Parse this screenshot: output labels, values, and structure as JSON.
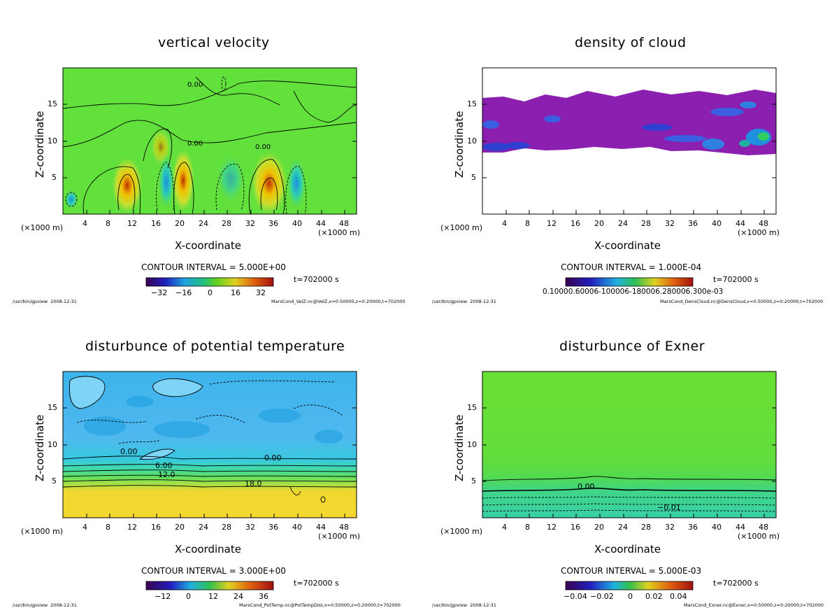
{
  "page": {
    "program": "/usr/bin/gpview",
    "date": "2008-12-31",
    "time_label": "t=702000 s"
  },
  "chart_data": [
    {
      "type": "heatmap",
      "title": "vertical velocity",
      "xlabel": "X-coordinate",
      "ylabel": "Z-coordinate",
      "x_unit": "(×1000 m)",
      "y_unit": "(×1000 m)",
      "xlim": [
        0,
        50
      ],
      "ylim": [
        0,
        20
      ],
      "x_ticks": [
        "4",
        "8",
        "12",
        "16",
        "20",
        "24",
        "28",
        "32",
        "36",
        "40",
        "44",
        "48"
      ],
      "y_ticks": [
        "5",
        "10",
        "15"
      ],
      "contour_interval": "CONTOUR INTERVAL = 5.000E+00",
      "colorbar_ticks": [
        "−32",
        "−16",
        "0",
        "16",
        "32"
      ],
      "contour_labels": [
        "0.00",
        "0.00",
        "0.00"
      ],
      "footer_file": "MarsCond_VelZ.nc@VelZ,x=0:50000,z=0:20000,t=702000",
      "time": "t=702000 s"
    },
    {
      "type": "heatmap",
      "title": "density of cloud",
      "xlabel": "X-coordinate",
      "ylabel": "Z-coordinate",
      "x_unit": "(×1000 m)",
      "y_unit": "(×1000 m)",
      "xlim": [
        0,
        50
      ],
      "ylim": [
        0,
        20
      ],
      "x_ticks": [
        "4",
        "8",
        "12",
        "16",
        "20",
        "24",
        "28",
        "32",
        "36",
        "40",
        "44",
        "48"
      ],
      "y_ticks": [
        "5",
        "10",
        "15"
      ],
      "contour_interval": "CONTOUR INTERVAL = 1.000E-04",
      "colorbar_label": "0.10000.60006-100006-180006.280006.300e-03",
      "contour_labels": [],
      "footer_file": "MarsCond_DensCloud.nc@DensCloud,x=0:50000,z=0:20000,t=702000",
      "time": "t=702000 s"
    },
    {
      "type": "heatmap",
      "title": "disturbunce of potential temperature",
      "xlabel": "X-coordinate",
      "ylabel": "Z-coordinate",
      "x_unit": "(×1000 m)",
      "y_unit": "(×1000 m)",
      "xlim": [
        0,
        50
      ],
      "ylim": [
        0,
        20
      ],
      "x_ticks": [
        "4",
        "8",
        "12",
        "16",
        "20",
        "24",
        "28",
        "32",
        "36",
        "40",
        "44",
        "48"
      ],
      "y_ticks": [
        "5",
        "10",
        "15"
      ],
      "contour_interval": "CONTOUR INTERVAL = 3.000E+00",
      "colorbar_ticks": [
        "−12",
        "0",
        "12",
        "24",
        "36"
      ],
      "contour_labels": [
        "0.00",
        "0.00",
        "6.00",
        "12.0",
        "18.0"
      ],
      "footer_file": "MarsCond_PotTemp.nc@PotTempDist,x=0:50000,z=0:20000,t=702000",
      "time": "t=702000 s"
    },
    {
      "type": "heatmap",
      "title": "disturbunce of Exner",
      "xlabel": "X-coordinate",
      "ylabel": "Z-coordinate",
      "x_unit": "(×1000 m)",
      "y_unit": "(×1000 m)",
      "xlim": [
        0,
        50
      ],
      "ylim": [
        0,
        20
      ],
      "x_ticks": [
        "4",
        "8",
        "12",
        "16",
        "20",
        "24",
        "28",
        "32",
        "36",
        "40",
        "44",
        "48"
      ],
      "y_ticks": [
        "5",
        "10",
        "15"
      ],
      "contour_interval": "CONTOUR INTERVAL = 5.000E-03",
      "colorbar_ticks": [
        "−0.04",
        "−0.02",
        "0",
        "0.02",
        "0.04"
      ],
      "contour_labels": [
        "0.00",
        "−0.01"
      ],
      "footer_file": "MarsCond_Exner.nc@Exner,x=0:50000,z=0:20000,t=702000",
      "time": "t=702000 s"
    }
  ]
}
